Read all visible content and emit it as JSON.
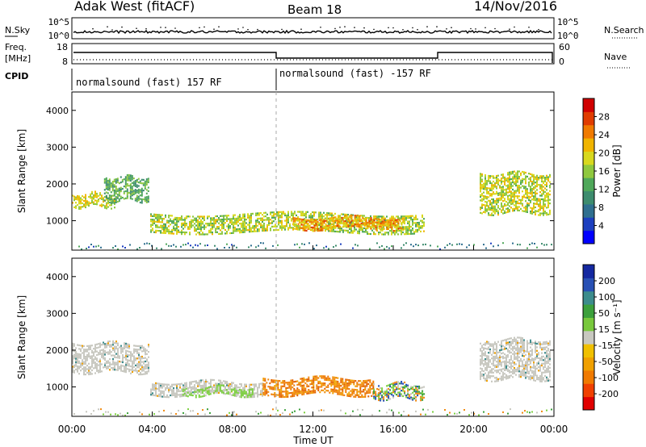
{
  "header": {
    "radar": "Adak West (fitACF)",
    "beam": "Beam 18",
    "date": "14/Nov/2016"
  },
  "top_panels": {
    "nsky": {
      "left_label": "N.Sky",
      "right_label": "N.Search",
      "tick_top": "10^5",
      "tick_bottom": "10^0"
    },
    "freq": {
      "left_label_line1": "Freq.",
      "left_label_line2": "[MHz]",
      "left_tick_top": "18",
      "left_tick_bottom": "8",
      "right_label": "Nave",
      "right_tick_top": "60",
      "right_tick_bottom": "0"
    },
    "cpid": {
      "label": "CPID",
      "segments": [
        "normalsound (fast) 157 RF",
        "normalsound (fast) -157 RF"
      ]
    }
  },
  "chart_data": [
    {
      "type": "heatmap",
      "panel": "power",
      "xlabel": "",
      "ylabel": "Slant Range [km]",
      "xlim": [
        0,
        24
      ],
      "ylim": [
        200,
        4500
      ],
      "y_ticks": [
        "1000",
        "2000",
        "3000",
        "4000"
      ],
      "colorbar": {
        "label": "Power [dB]",
        "ticks": [
          "4",
          "8",
          "12",
          "16",
          "20",
          "24",
          "28"
        ],
        "range": [
          0,
          30
        ],
        "colors": [
          "#0000ff",
          "#1c3fbf",
          "#2f6f8f",
          "#3d8c6e",
          "#4fa85a",
          "#8fc83e",
          "#d8d81e",
          "#f0b400",
          "#f07a00",
          "#e03c00",
          "#d00000"
        ]
      },
      "echo_regions": [
        {
          "t_start": 0.0,
          "t_end": 2.1,
          "r_start": 1400,
          "r_end": 1750,
          "level": 18
        },
        {
          "t_start": 1.6,
          "t_end": 3.8,
          "r_start": 1550,
          "r_end": 2200,
          "level": 12
        },
        {
          "t_start": 3.9,
          "t_end": 17.5,
          "r_start": 700,
          "r_end": 1200,
          "level": 16
        },
        {
          "t_start": 11.0,
          "t_end": 16.5,
          "r_start": 800,
          "r_end": 1100,
          "level": 22
        },
        {
          "t_start": 20.3,
          "t_end": 23.8,
          "r_start": 1200,
          "r_end": 2300,
          "level": 17
        }
      ]
    },
    {
      "type": "heatmap",
      "panel": "velocity",
      "xlabel": "Time UT",
      "ylabel": "Slant Range [km]",
      "xlim": [
        0,
        24
      ],
      "ylim": [
        200,
        4500
      ],
      "x_ticks": [
        "00:00",
        "04:00",
        "08:00",
        "12:00",
        "16:00",
        "20:00",
        "00:00"
      ],
      "y_ticks": [
        "1000",
        "2000",
        "3000",
        "4000"
      ],
      "colorbar": {
        "label": "Velocity [m s⁻¹]",
        "ticks": [
          "-200",
          "-100",
          "-50",
          "-15",
          "15",
          "50",
          "100",
          "200"
        ],
        "colors": [
          "#e00000",
          "#f04000",
          "#f07a00",
          "#f0a000",
          "#f0c000",
          "#c8c8c0",
          "#78c83c",
          "#3ca03c",
          "#3c8c8c",
          "#2850b4",
          "#1428a0"
        ]
      },
      "echo_regions": [
        {
          "t_start": 0.0,
          "t_end": 3.8,
          "r_start": 1400,
          "r_end": 2200,
          "class": "ground"
        },
        {
          "t_start": 3.9,
          "t_end": 9.5,
          "r_start": 800,
          "r_end": 1150,
          "class": "ground"
        },
        {
          "t_start": 9.5,
          "t_end": 15.0,
          "r_start": 800,
          "r_end": 1250,
          "class": "negative"
        },
        {
          "t_start": 5.5,
          "t_end": 9.0,
          "r_start": 800,
          "r_end": 1000,
          "class": "positive"
        },
        {
          "t_start": 15.0,
          "t_end": 17.5,
          "r_start": 700,
          "r_end": 1100,
          "class": "mixed"
        },
        {
          "t_start": 20.3,
          "t_end": 23.8,
          "r_start": 1200,
          "r_end": 2300,
          "class": "ground"
        }
      ]
    }
  ],
  "colors": {
    "ground": "#c8c8c0",
    "negative": "#f08a10",
    "positive": "#7cd040",
    "axis": "#000000"
  }
}
